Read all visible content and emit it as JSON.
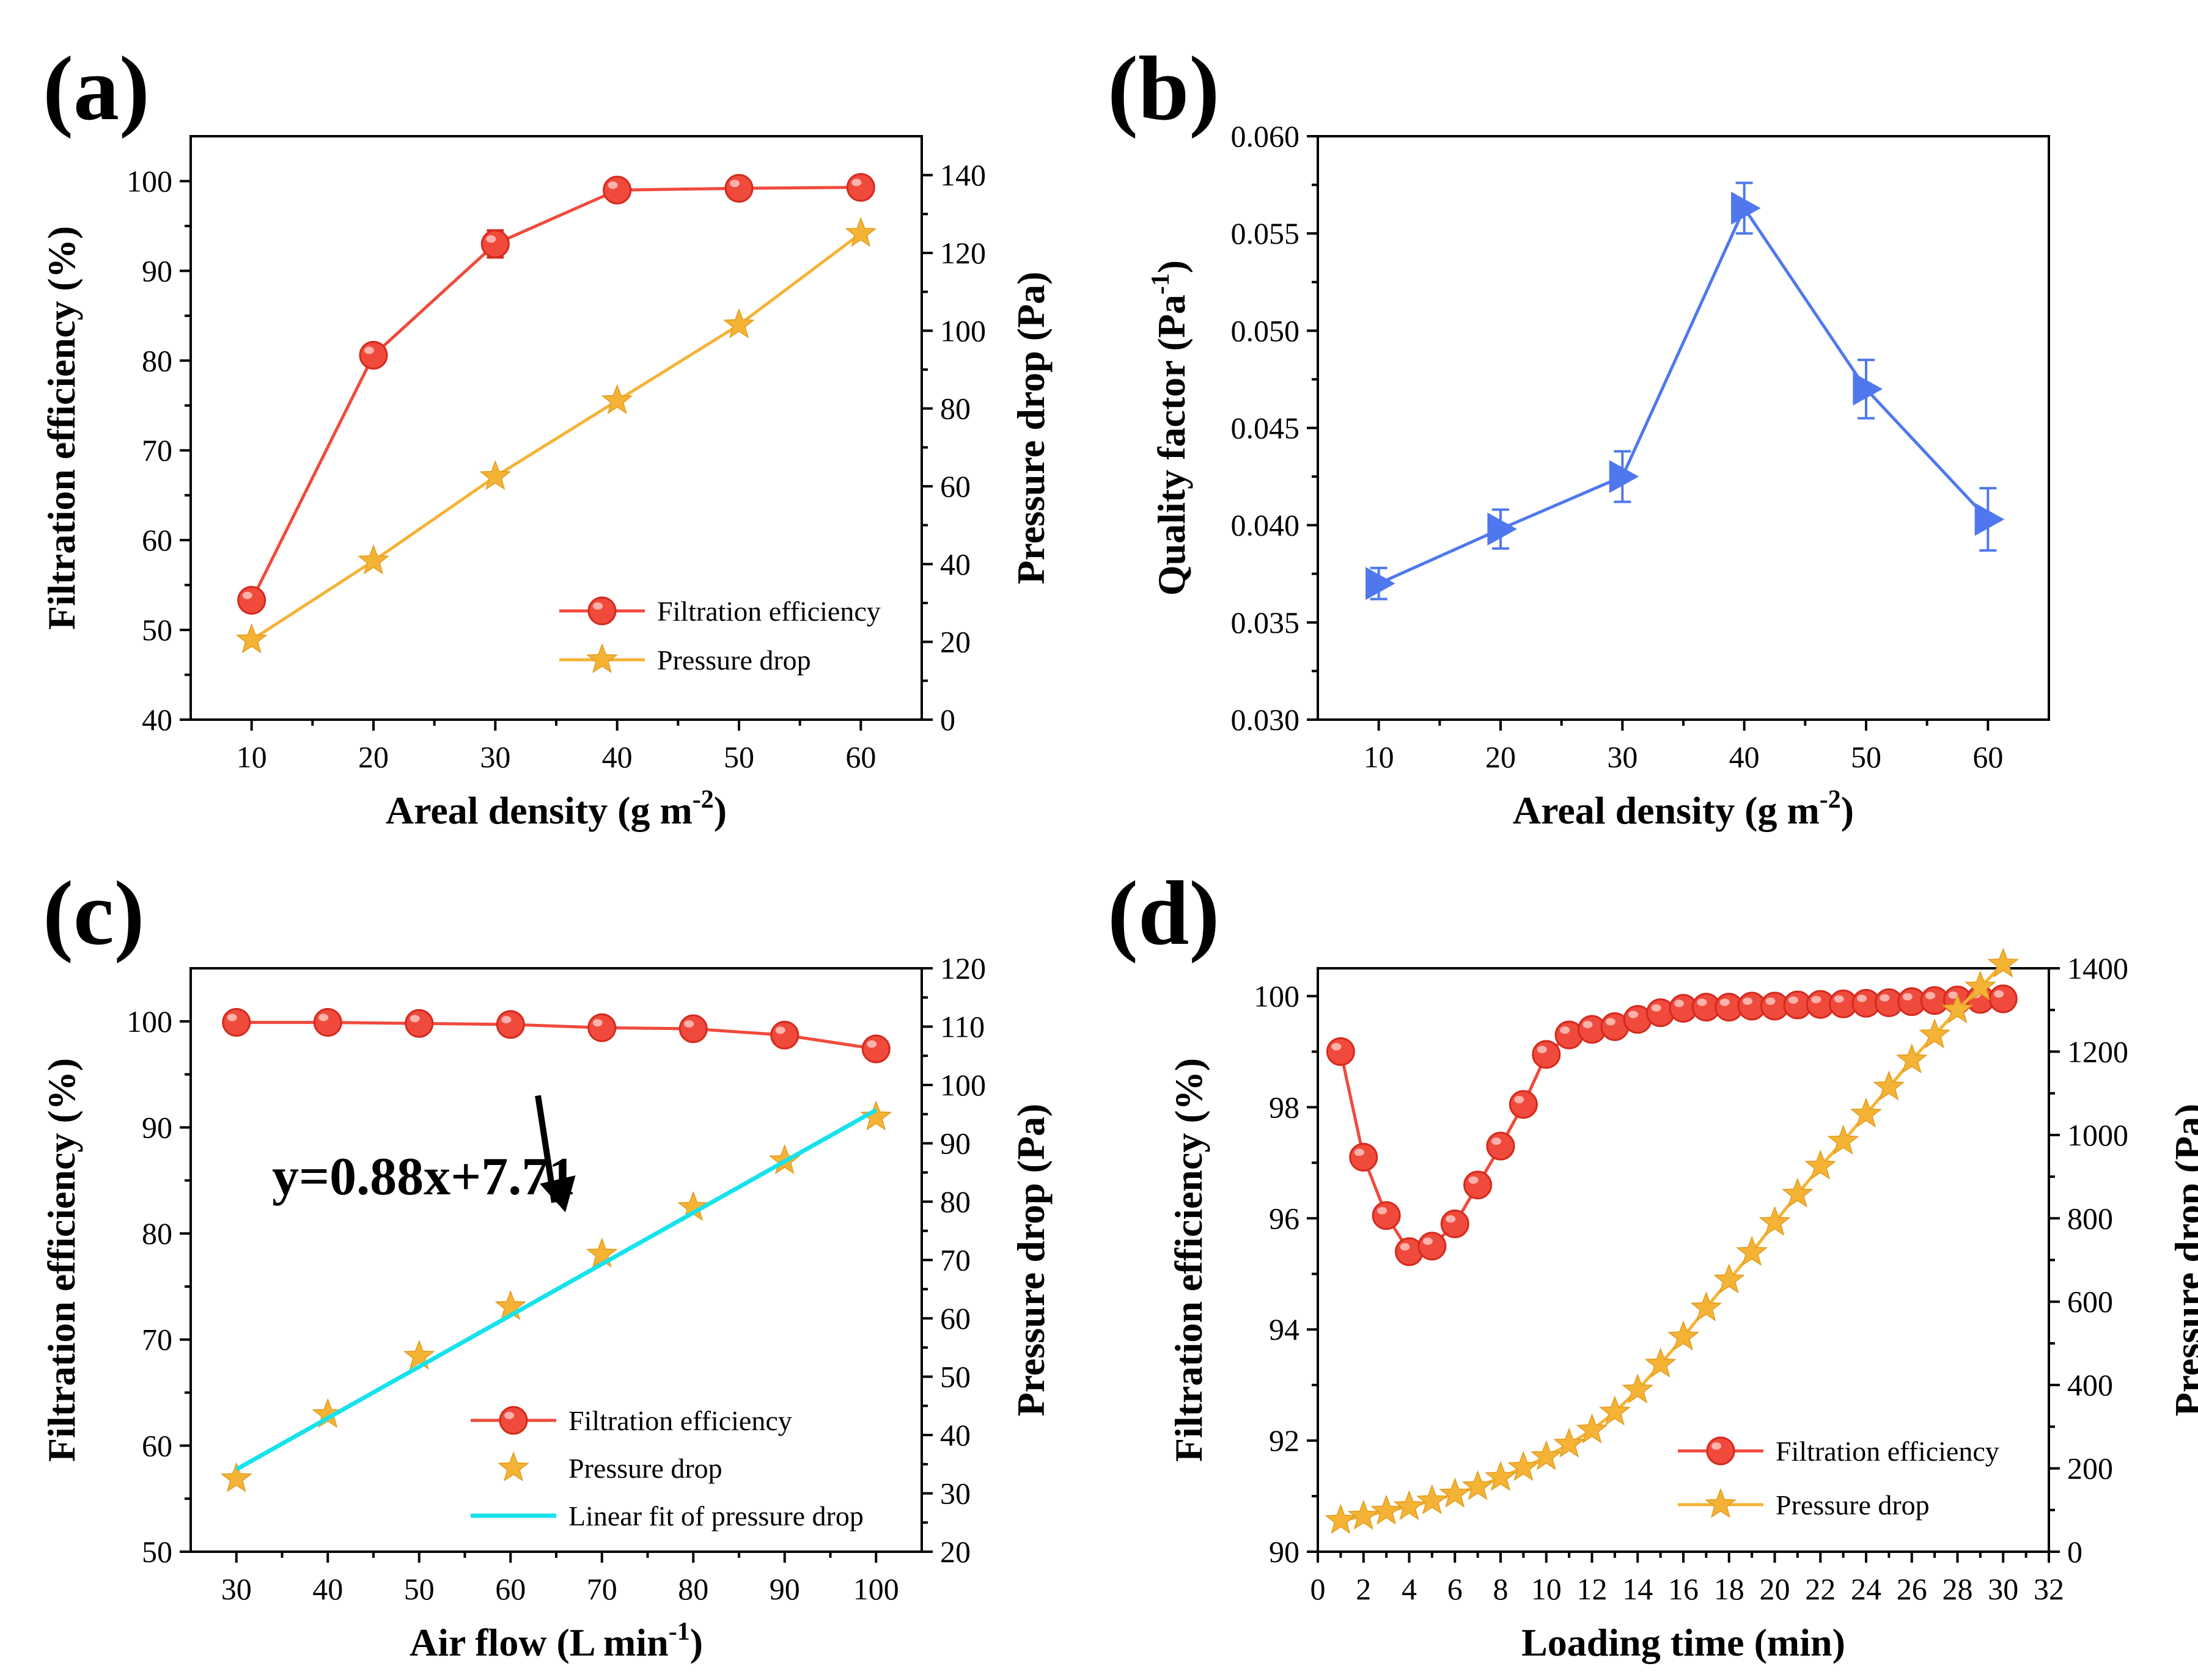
{
  "colors": {
    "red": "#f04a3c",
    "red_marker_edge": "#d42a1e",
    "orange": "#f5b335",
    "blue": "#4f78ee",
    "cyan": "#16e2ec",
    "axis": "#000000"
  },
  "chart_data": [
    {
      "id": "a",
      "panel_label": "(a)",
      "type": "line",
      "xlabel": "Areal density (g m",
      "xlabel_sup": "-2",
      "xlabel_end": ")",
      "ylabel": "Filtration efficiency (%)",
      "y2label": "Pressure drop (Pa)",
      "xlim": [
        5,
        65
      ],
      "ylim": [
        40,
        105
      ],
      "y2lim": [
        0,
        150
      ],
      "xticks": [
        10,
        20,
        30,
        40,
        50,
        60
      ],
      "yticks": [
        40,
        50,
        60,
        70,
        80,
        90,
        100
      ],
      "y2ticks": [
        0,
        20,
        40,
        60,
        80,
        100,
        120,
        140
      ],
      "series": [
        {
          "name": "Filtration efficiency",
          "axis": "left",
          "marker": "circle",
          "color": "red",
          "x": [
            10,
            20,
            30,
            40,
            50,
            60
          ],
          "values": [
            53.3,
            80.6,
            93.0,
            99.0,
            99.2,
            99.3
          ],
          "err": [
            0.5,
            0.5,
            1.5,
            1.0,
            0.5,
            0.3
          ]
        },
        {
          "name": "Pressure drop",
          "axis": "right",
          "marker": "star",
          "color": "orange",
          "x": [
            10,
            20,
            30,
            40,
            50,
            60
          ],
          "values": [
            20.5,
            40.8,
            62.5,
            82.0,
            101.5,
            125.0
          ]
        }
      ],
      "legend": [
        {
          "label": "Filtration efficiency",
          "marker": "circle",
          "color": "red",
          "line": true
        },
        {
          "label": "Pressure drop",
          "marker": "star",
          "color": "orange",
          "line": true
        }
      ]
    },
    {
      "id": "b",
      "panel_label": "(b)",
      "type": "line",
      "xlabel": "Areal density (g m",
      "xlabel_sup": "-2",
      "xlabel_end": ")",
      "ylabel": "Quality factor (Pa",
      "ylabel_sup": "-1",
      "ylabel_end": ")",
      "xlim": [
        5,
        65
      ],
      "ylim": [
        0.03,
        0.06
      ],
      "xticks": [
        10,
        20,
        30,
        40,
        50,
        60
      ],
      "yticks": [
        0.03,
        0.035,
        0.04,
        0.045,
        0.05,
        0.055,
        0.06
      ],
      "ytick_labels": [
        "0.030",
        "0.035",
        "0.040",
        "0.045",
        "0.050",
        "0.055",
        "0.060"
      ],
      "series": [
        {
          "name": "Quality factor",
          "axis": "left",
          "marker": "triangle-right",
          "color": "blue",
          "x": [
            10,
            20,
            30,
            40,
            50,
            60
          ],
          "values": [
            0.037,
            0.0398,
            0.0425,
            0.0563,
            0.047,
            0.0403
          ],
          "err": [
            0.0008,
            0.001,
            0.0013,
            0.0013,
            0.0015,
            0.0016
          ]
        }
      ]
    },
    {
      "id": "c",
      "panel_label": "(c)",
      "type": "scatter",
      "xlabel": "Air flow (L min",
      "xlabel_sup": "-1",
      "xlabel_end": ")",
      "ylabel": "Filtration efficiency (%)",
      "y2label": "Pressure drop (Pa)",
      "xlim": [
        25,
        105
      ],
      "ylim": [
        50,
        105
      ],
      "y2lim": [
        20,
        120
      ],
      "xticks": [
        30,
        40,
        50,
        60,
        70,
        80,
        90,
        100
      ],
      "yticks": [
        50,
        60,
        70,
        80,
        90,
        100
      ],
      "y2ticks": [
        20,
        30,
        40,
        50,
        60,
        70,
        80,
        90,
        100,
        110,
        120
      ],
      "series": [
        {
          "name": "Filtration efficiency",
          "axis": "left",
          "marker": "circle",
          "color": "red",
          "line": true,
          "x": [
            30,
            40,
            50,
            60,
            70,
            80,
            90,
            100
          ],
          "values": [
            99.9,
            99.9,
            99.8,
            99.7,
            99.4,
            99.3,
            98.7,
            97.4
          ]
        },
        {
          "name": "Pressure drop",
          "axis": "right",
          "marker": "star",
          "color": "orange",
          "line": false,
          "x": [
            30,
            40,
            50,
            60,
            70,
            80,
            90,
            100
          ],
          "values": [
            32.5,
            43.5,
            53.5,
            62.0,
            71.0,
            79.0,
            87.0,
            94.5
          ]
        },
        {
          "name": "Linear fit of pressure drop",
          "axis": "right",
          "marker": "none",
          "color": "cyan",
          "line": true,
          "x": [
            30,
            100
          ],
          "values": [
            34.11,
            95.71
          ]
        }
      ],
      "annotation": {
        "text": "y=0.88x+7.71",
        "arrow_from": [
          63,
          93
        ],
        "arrow_to": [
          66,
          82
        ]
      },
      "legend": [
        {
          "label": "Filtration efficiency",
          "marker": "circle",
          "color": "red",
          "line": true
        },
        {
          "label": "Pressure drop",
          "marker": "star",
          "color": "orange",
          "line": false
        },
        {
          "label": "Linear fit of pressure drop",
          "marker": "none",
          "color": "cyan",
          "line": true
        }
      ]
    },
    {
      "id": "d",
      "panel_label": "(d)",
      "type": "line",
      "xlabel": "Loading time (min)",
      "ylabel": "Filtration efficiency (%)",
      "y2label": "Pressure drop (Pa)",
      "xlim": [
        0,
        32
      ],
      "ylim": [
        90,
        100.5
      ],
      "y2lim": [
        0,
        1400
      ],
      "xticks": [
        0,
        2,
        4,
        6,
        8,
        10,
        12,
        14,
        16,
        18,
        20,
        22,
        24,
        26,
        28,
        30,
        32
      ],
      "yticks": [
        90,
        92,
        94,
        96,
        98,
        100
      ],
      "y2ticks": [
        0,
        200,
        400,
        600,
        800,
        1000,
        1200,
        1400
      ],
      "series": [
        {
          "name": "Filtration efficiency",
          "axis": "left",
          "marker": "circle",
          "color": "red",
          "x": [
            1,
            2,
            3,
            4,
            5,
            6,
            7,
            8,
            9,
            10,
            11,
            12,
            13,
            14,
            15,
            16,
            17,
            18,
            19,
            20,
            21,
            22,
            23,
            24,
            25,
            26,
            27,
            28,
            29,
            30
          ],
          "values": [
            99.0,
            97.1,
            96.05,
            95.4,
            95.5,
            95.9,
            96.6,
            97.3,
            98.05,
            98.95,
            99.3,
            99.4,
            99.45,
            99.58,
            99.7,
            99.78,
            99.8,
            99.8,
            99.82,
            99.82,
            99.84,
            99.85,
            99.86,
            99.87,
            99.88,
            99.9,
            99.92,
            99.93,
            99.94,
            99.95
          ]
        },
        {
          "name": "Pressure drop",
          "axis": "right",
          "marker": "star",
          "color": "orange",
          "x": [
            1,
            2,
            3,
            4,
            5,
            6,
            7,
            8,
            9,
            10,
            11,
            12,
            13,
            14,
            15,
            16,
            17,
            18,
            19,
            20,
            21,
            22,
            23,
            24,
            25,
            26,
            27,
            28,
            29,
            30
          ],
          "values": [
            75,
            85,
            97,
            108,
            122,
            138,
            156,
            178,
            202,
            228,
            258,
            292,
            335,
            388,
            450,
            515,
            585,
            652,
            718,
            790,
            858,
            925,
            985,
            1050,
            1115,
            1180,
            1240,
            1300,
            1355,
            1410
          ]
        }
      ],
      "legend": [
        {
          "label": "Filtration efficiency",
          "marker": "circle",
          "color": "red",
          "line": true
        },
        {
          "label": "Pressure drop",
          "marker": "star",
          "color": "orange",
          "line": true
        }
      ]
    }
  ]
}
